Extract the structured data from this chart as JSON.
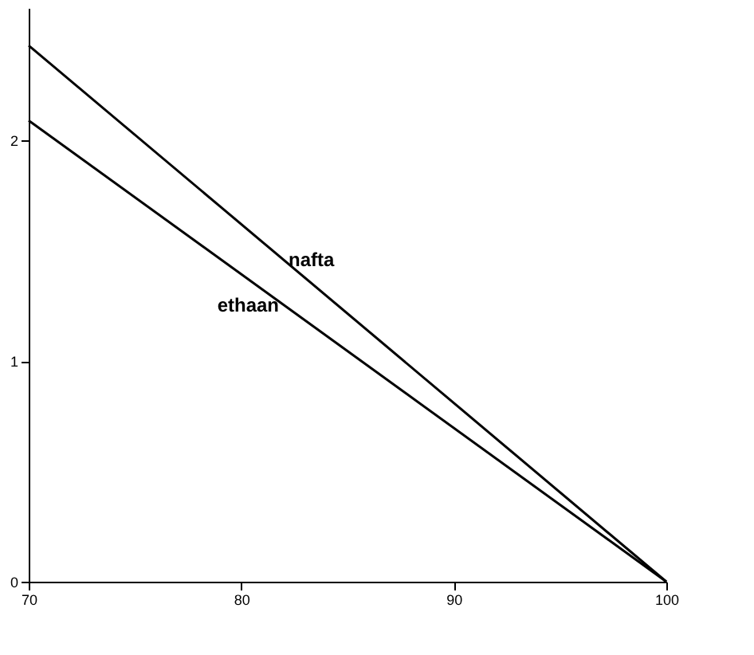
{
  "chart_data": {
    "type": "line",
    "xlim": [
      70,
      100
    ],
    "xticks": [
      70,
      80,
      90,
      100
    ],
    "ylim": [
      0,
      2.6
    ],
    "yticks": [
      0,
      1,
      2
    ],
    "grid": false,
    "legend": false,
    "marker": "none",
    "line_style": "solid",
    "x": [
      70,
      100
    ],
    "series": [
      {
        "name": "ethaan",
        "color": "#000000",
        "values": [
          2.09,
          0
        ]
      },
      {
        "name": "nafta",
        "color": "#000000",
        "values": [
          2.43,
          0
        ]
      }
    ]
  }
}
